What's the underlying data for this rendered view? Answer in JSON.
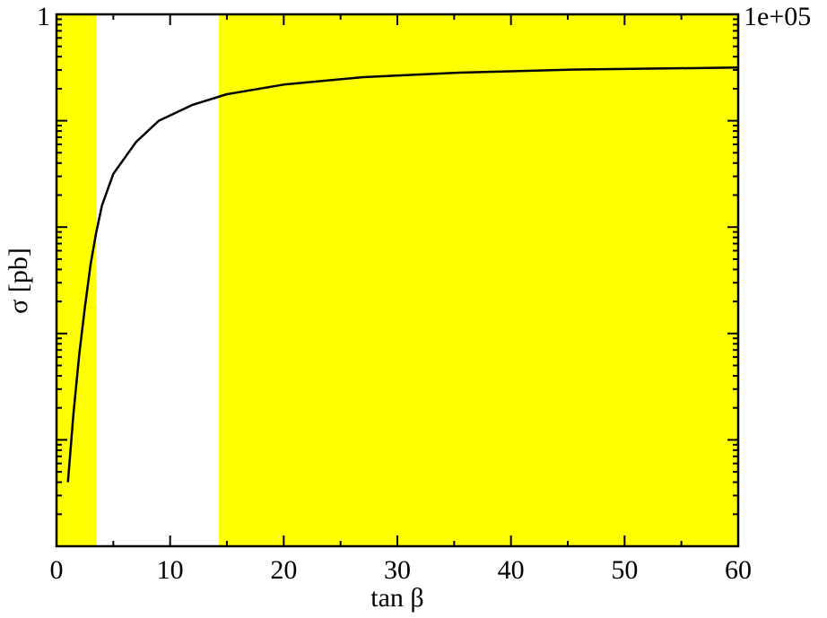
{
  "chart_data": {
    "type": "line",
    "title": "",
    "xlabel": "tan β",
    "ylabel": "σ [pb]",
    "xlim": [
      0,
      60
    ],
    "x_ticks": [
      0,
      10,
      20,
      30,
      40,
      50,
      60
    ],
    "x_tick_labels": [
      "0",
      "10",
      "20",
      "30",
      "40",
      "50",
      "60"
    ],
    "yscale": "log",
    "ylim": [
      1,
      100000
    ],
    "y_tick_labels": [
      "1",
      "1e+05"
    ],
    "grid": false,
    "legend": "none",
    "shaded_regions": [
      {
        "x": [
          0,
          3.5
        ],
        "color": "#ffff00"
      },
      {
        "x": [
          14.3,
          60
        ],
        "color": "#ffff00"
      }
    ],
    "series": [
      {
        "color": "#000000",
        "x": [
          1,
          1.5,
          2,
          2.5,
          3,
          3.5,
          4,
          5,
          7,
          9,
          12,
          15,
          20,
          27,
          35,
          45,
          60
        ],
        "y": [
          4,
          18,
          63,
          178,
          447,
          891,
          1600,
          3160,
          6310,
          10000,
          14130,
          17780,
          21880,
          25700,
          28180,
          30200,
          31620
        ]
      }
    ]
  }
}
